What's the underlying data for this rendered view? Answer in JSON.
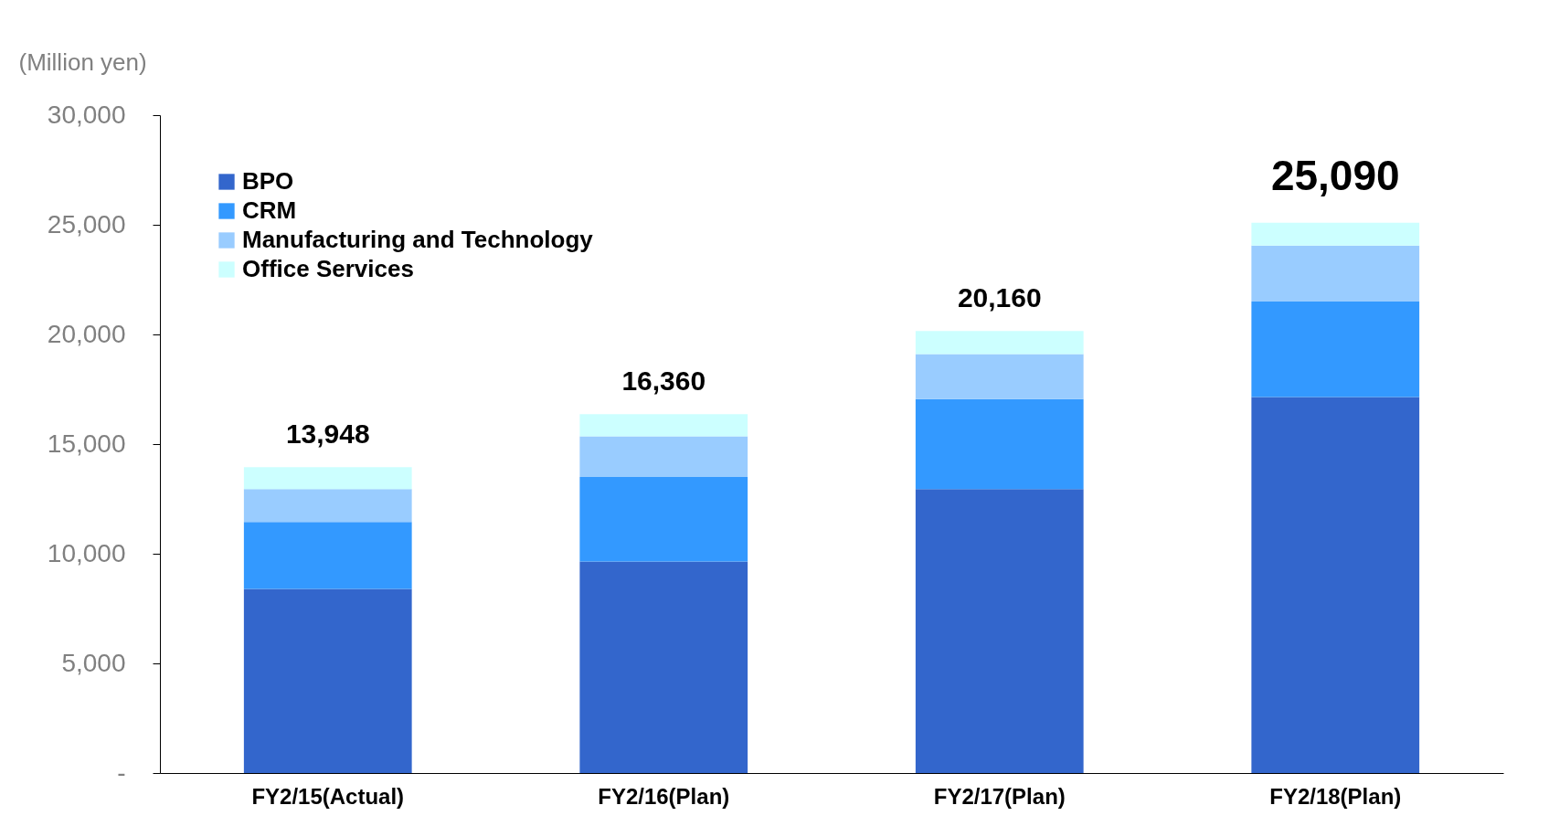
{
  "chart_data": {
    "type": "bar",
    "stacked": true,
    "ylabel": "(Million yen)",
    "categories": [
      "FY2/15(Actual)",
      "FY2/16(Plan)",
      "FY2/17(Plan)",
      "FY2/18(Plan)"
    ],
    "series": [
      {
        "name": "BPO",
        "color": "#3366cc",
        "values": [
          8400,
          9650,
          12950,
          17150
        ]
      },
      {
        "name": "CRM",
        "color": "#3399ff",
        "values": [
          3050,
          3850,
          4100,
          4350
        ]
      },
      {
        "name": "Manufacturing and Technology",
        "color": "#99ccff",
        "values": [
          1500,
          1850,
          2050,
          2550
        ]
      },
      {
        "name": "Office Services",
        "color": "#ccffff",
        "values": [
          998,
          1010,
          1060,
          1040
        ]
      }
    ],
    "totals": [
      "13,948",
      "16,360",
      "20,160",
      "25,090"
    ],
    "ylim": [
      0,
      30000
    ],
    "yticks": [
      {
        "value": 0,
        "label": "-"
      },
      {
        "value": 5000,
        "label": "5,000"
      },
      {
        "value": 10000,
        "label": "10,000"
      },
      {
        "value": 15000,
        "label": "15,000"
      },
      {
        "value": 20000,
        "label": "20,000"
      },
      {
        "value": 25000,
        "label": "25,000"
      },
      {
        "value": 30000,
        "label": "30,000"
      }
    ],
    "grid": false,
    "legend": "top left"
  }
}
